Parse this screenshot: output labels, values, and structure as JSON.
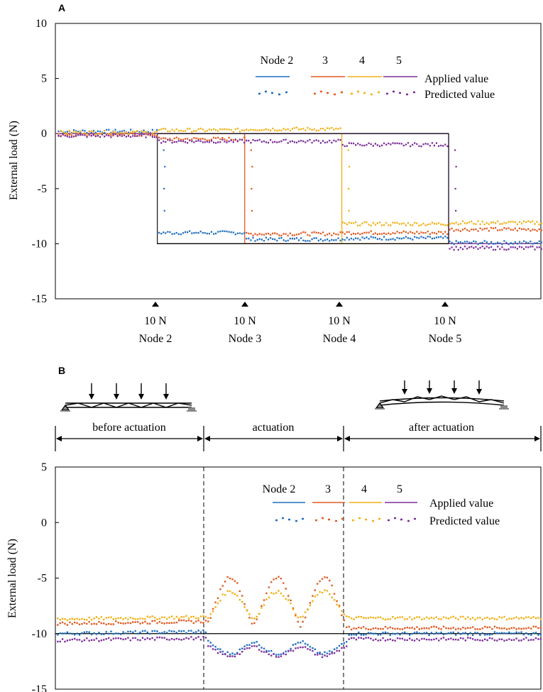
{
  "colors": {
    "node2": "#1f6fbf",
    "node3": "#e05a22",
    "node4": "#f2b015",
    "node5": "#7b2e9a",
    "axis": "#000000"
  },
  "chart_data": [
    {
      "panel": "A",
      "type": "line",
      "ylabel": "External load (N)",
      "ylim": [
        -15,
        10
      ],
      "yticks": [
        "10",
        "5",
        "0",
        "-5",
        "-10",
        "-15"
      ],
      "legend": {
        "header": [
          "Node 2",
          "3",
          "4",
          "5"
        ],
        "applied_label": "Applied value",
        "predicted_label": "Predicted value",
        "placement": "top-right"
      },
      "markers": [
        {
          "load": "10 N",
          "node": "Node 2"
        },
        {
          "load": "10 N",
          "node": "Node 3"
        },
        {
          "load": "10 N",
          "node": "Node 4"
        },
        {
          "load": "10 N",
          "node": "Node 5"
        }
      ],
      "x_range": [
        0,
        100
      ],
      "step_times": [
        21,
        39,
        59,
        81
      ],
      "applied_series": [
        {
          "name": "Node 2",
          "segments": [
            [
              0,
              0
            ],
            [
              21,
              0
            ],
            [
              21,
              -10
            ],
            [
              100,
              -10
            ]
          ]
        },
        {
          "name": "Node 3",
          "segments": [
            [
              0,
              0
            ],
            [
              39,
              0
            ],
            [
              39,
              -10
            ],
            [
              100,
              -10
            ]
          ]
        },
        {
          "name": "Node 4",
          "segments": [
            [
              0,
              0
            ],
            [
              59,
              0
            ],
            [
              59,
              -10
            ],
            [
              100,
              -10
            ]
          ]
        },
        {
          "name": "Node 5",
          "segments": [
            [
              0,
              0
            ],
            [
              81,
              0
            ],
            [
              81,
              -10
            ],
            [
              100,
              -10
            ]
          ]
        }
      ],
      "predicted_series": [
        {
          "name": "Node 2",
          "levels": [
            [
              0,
              0.2
            ],
            [
              21,
              -9.0
            ],
            [
              39,
              -9.6
            ],
            [
              59,
              -9.5
            ],
            [
              81,
              -9.9
            ]
          ]
        },
        {
          "name": "Node 3",
          "levels": [
            [
              0,
              -0.1
            ],
            [
              21,
              -0.5
            ],
            [
              39,
              -9.1
            ],
            [
              59,
              -9.0
            ],
            [
              81,
              -8.7
            ]
          ]
        },
        {
          "name": "Node 4",
          "levels": [
            [
              0,
              0.1
            ],
            [
              21,
              0.3
            ],
            [
              39,
              0.4
            ],
            [
              59,
              -8.2
            ],
            [
              81,
              -8.1
            ]
          ]
        },
        {
          "name": "Node 5",
          "levels": [
            [
              0,
              -0.2
            ],
            [
              21,
              -0.7
            ],
            [
              39,
              -0.7
            ],
            [
              59,
              -1.0
            ],
            [
              81,
              -10.4
            ]
          ]
        }
      ]
    },
    {
      "panel": "B",
      "type": "line",
      "ylabel": "External load (N)",
      "ylim": [
        -15,
        5
      ],
      "yticks": [
        "5",
        "0",
        "-5",
        "-10",
        "-15"
      ],
      "legend": {
        "header": [
          "Node 2",
          "3",
          "4",
          "5"
        ],
        "applied_label": "Applied value",
        "predicted_label": "Predicted value",
        "placement": "top-right"
      },
      "phases": [
        "before actuation",
        "actuation",
        "after actuation"
      ],
      "phase_bounds": [
        0,
        31,
        60,
        100
      ],
      "applied_value": -10,
      "predicted_series": [
        {
          "name": "Node 2",
          "before": -10.0,
          "after": -10.0,
          "dip": -11.8
        },
        {
          "name": "Node 3",
          "before": -9.1,
          "after": -9.5,
          "peak": -4.9
        },
        {
          "name": "Node 4",
          "before": -8.7,
          "after": -8.6,
          "peak": -6.2
        },
        {
          "name": "Node 5",
          "before": -10.6,
          "after": -10.5,
          "dip": -12.0
        }
      ]
    }
  ],
  "panel_labels": [
    "A",
    "B"
  ]
}
